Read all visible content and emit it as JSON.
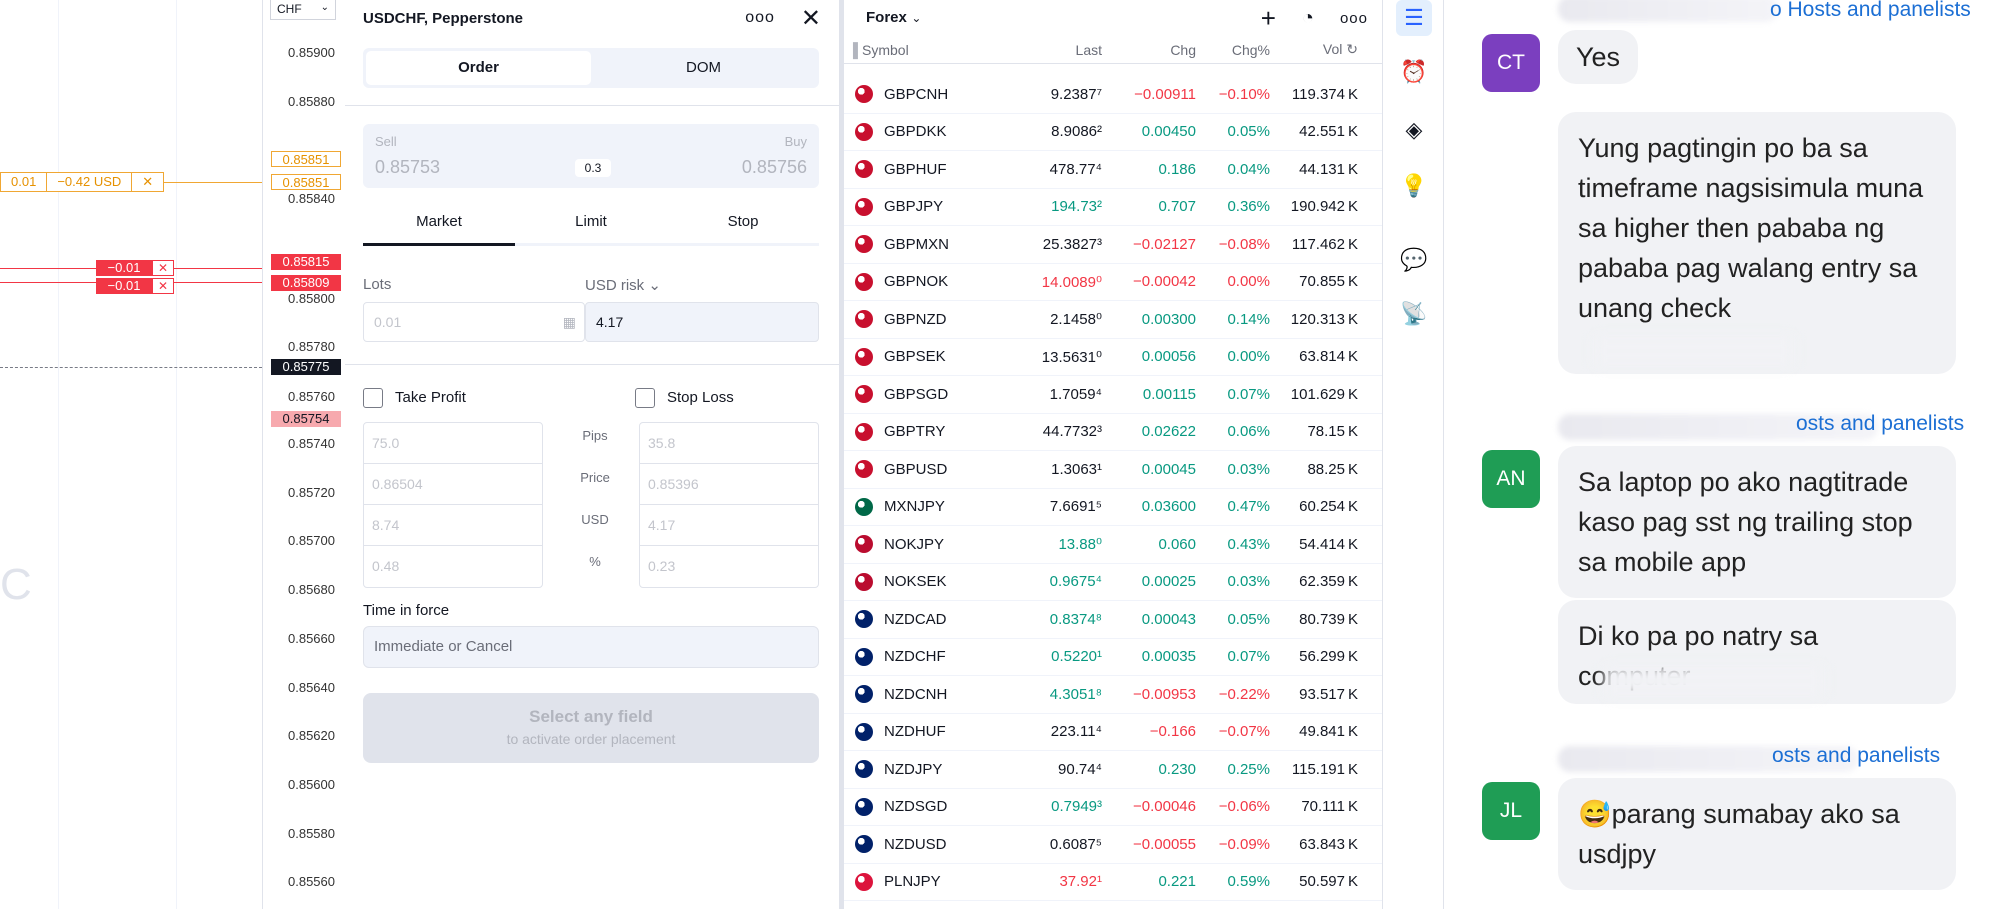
{
  "chart": {
    "currency": "CHF",
    "axis_labels": [
      "0.85900",
      "0.85880",
      "0.85840",
      "0.85800",
      "0.85780",
      "0.85760",
      "0.85740",
      "0.85720",
      "0.85700",
      "0.85680",
      "0.85660",
      "0.85640",
      "0.85620",
      "0.85600",
      "0.85580",
      "0.85560"
    ],
    "tags": {
      "tp1": "0.85851",
      "tp2": "0.85851",
      "red1": "0.85815",
      "red2": "0.85809",
      "current": "0.85775",
      "bid": "0.85754"
    },
    "position_orange": {
      "qty": "0.01",
      "pnl": "−0.42 USD",
      "close": "✕"
    },
    "position_red": {
      "qty": "−0.01",
      "close": "✕"
    },
    "partial_letter": "C"
  },
  "order_panel": {
    "title": "USDCHF, Pepperstone",
    "tabs": [
      "Order",
      "DOM"
    ],
    "sell_label": "Sell",
    "sell_price": "0.85753",
    "buy_label": "Buy",
    "buy_price": "0.85756",
    "spread": "0.3",
    "order_types": [
      "Market",
      "Limit",
      "Stop"
    ],
    "lots_label": "Lots",
    "lots_placeholder": "0.01",
    "risk_label": "USD risk",
    "risk_value": "4.17",
    "take_profit_label": "Take Profit",
    "stop_loss_label": "Stop Loss",
    "row_labels": [
      "Pips",
      "Price",
      "USD",
      "%"
    ],
    "tp_values": [
      "75.0",
      "0.86504",
      "8.74",
      "0.48"
    ],
    "sl_values": [
      "35.8",
      "0.85396",
      "4.17",
      "0.23"
    ],
    "tif_label": "Time in force",
    "tif_value": "Immediate or Cancel",
    "place_button": "Select any field",
    "place_hint": "to activate order placement"
  },
  "watchlist": {
    "title": "Forex",
    "columns": {
      "symbol": "Symbol",
      "last": "Last",
      "chg": "Chg",
      "chg_pct": "Chg%",
      "vol": "Vol"
    },
    "rows": [
      {
        "symbol": "GBPCNH",
        "last": "9.2387⁷",
        "chg": "−0.00911",
        "pct": "−0.10%",
        "vol": "119.374 K",
        "dir": "neg",
        "lastc": "neu"
      },
      {
        "symbol": "GBPDKK",
        "last": "8.9086²",
        "chg": "0.00450",
        "pct": "0.05%",
        "vol": "42.551 K",
        "dir": "pos",
        "lastc": "neu"
      },
      {
        "symbol": "GBPHUF",
        "last": "478.77⁴",
        "chg": "0.186",
        "pct": "0.04%",
        "vol": "44.131 K",
        "dir": "pos",
        "lastc": "neu"
      },
      {
        "symbol": "GBPJPY",
        "last": "194.73²",
        "chg": "0.707",
        "pct": "0.36%",
        "vol": "190.942 K",
        "dir": "pos",
        "lastc": "pos"
      },
      {
        "symbol": "GBPMXN",
        "last": "25.3827³",
        "chg": "−0.02127",
        "pct": "−0.08%",
        "vol": "117.462 K",
        "dir": "neg",
        "lastc": "neu"
      },
      {
        "symbol": "GBPNOK",
        "last": "14.0089⁰",
        "chg": "−0.00042",
        "pct": "0.00%",
        "vol": "70.855 K",
        "dir": "neg",
        "lastc": "neg"
      },
      {
        "symbol": "GBPNZD",
        "last": "2.1458⁰",
        "chg": "0.00300",
        "pct": "0.14%",
        "vol": "120.313 K",
        "dir": "pos",
        "lastc": "neu"
      },
      {
        "symbol": "GBPSEK",
        "last": "13.5631⁰",
        "chg": "0.00056",
        "pct": "0.00%",
        "vol": "63.814 K",
        "dir": "pos",
        "lastc": "neu"
      },
      {
        "symbol": "GBPSGD",
        "last": "1.7059⁴",
        "chg": "0.00115",
        "pct": "0.07%",
        "vol": "101.629 K",
        "dir": "pos",
        "lastc": "neu"
      },
      {
        "symbol": "GBPTRY",
        "last": "44.7732³",
        "chg": "0.02622",
        "pct": "0.06%",
        "vol": "78.15 K",
        "dir": "pos",
        "lastc": "neu"
      },
      {
        "symbol": "GBPUSD",
        "last": "1.3063¹",
        "chg": "0.00045",
        "pct": "0.03%",
        "vol": "88.25 K",
        "dir": "pos",
        "lastc": "neu"
      },
      {
        "symbol": "MXNJPY",
        "last": "7.6691⁵",
        "chg": "0.03600",
        "pct": "0.47%",
        "vol": "60.254 K",
        "dir": "pos",
        "lastc": "neu"
      },
      {
        "symbol": "NOKJPY",
        "last": "13.88⁰",
        "chg": "0.060",
        "pct": "0.43%",
        "vol": "54.414 K",
        "dir": "pos",
        "lastc": "pos"
      },
      {
        "symbol": "NOKSEK",
        "last": "0.9675⁴",
        "chg": "0.00025",
        "pct": "0.03%",
        "vol": "62.359 K",
        "dir": "pos",
        "lastc": "pos"
      },
      {
        "symbol": "NZDCAD",
        "last": "0.8374⁸",
        "chg": "0.00043",
        "pct": "0.05%",
        "vol": "80.739 K",
        "dir": "pos",
        "lastc": "pos"
      },
      {
        "symbol": "NZDCHF",
        "last": "0.5220¹",
        "chg": "0.00035",
        "pct": "0.07%",
        "vol": "56.299 K",
        "dir": "pos",
        "lastc": "pos"
      },
      {
        "symbol": "NZDCNH",
        "last": "4.3051⁸",
        "chg": "−0.00953",
        "pct": "−0.22%",
        "vol": "93.517 K",
        "dir": "neg",
        "lastc": "pos"
      },
      {
        "symbol": "NZDHUF",
        "last": "223.11⁴",
        "chg": "−0.166",
        "pct": "−0.07%",
        "vol": "49.841 K",
        "dir": "neg",
        "lastc": "neu"
      },
      {
        "symbol": "NZDJPY",
        "last": "90.74⁴",
        "chg": "0.230",
        "pct": "0.25%",
        "vol": "115.191 K",
        "dir": "pos",
        "lastc": "neu"
      },
      {
        "symbol": "NZDSGD",
        "last": "0.7949³",
        "chg": "−0.00046",
        "pct": "−0.06%",
        "vol": "70.111 K",
        "dir": "neg",
        "lastc": "pos"
      },
      {
        "symbol": "NZDUSD",
        "last": "0.6087⁵",
        "chg": "−0.00055",
        "pct": "−0.09%",
        "vol": "63.843 K",
        "dir": "neg",
        "lastc": "neu"
      },
      {
        "symbol": "PLNJPY",
        "last": "37.92¹",
        "chg": "0.221",
        "pct": "0.59%",
        "vol": "50.597 K",
        "dir": "pos",
        "lastc": "neg"
      }
    ]
  },
  "chat": {
    "role_suffix_1": "o Hosts and panelists",
    "role_suffix_2": "osts and panelists",
    "role_suffix_3": "osts and panelists",
    "messages": [
      {
        "initials": "CT",
        "color": "#7b3fbf",
        "texts": [
          "Yes",
          "Yung pagtingin po ba sa timeframe nagsisimula muna sa higher then pababa ng pababa pag walang entry sa unang check"
        ]
      },
      {
        "initials": "AN",
        "color": "#1f9d55",
        "texts": [
          "Sa laptop po ako nagtitrade kaso pag sst ng trailing stop sa mobile app",
          "Di ko pa po natry sa computer"
        ]
      },
      {
        "initials": "JL",
        "color": "#1f9d55",
        "texts": [
          "😅parang sumabay ako sa usdjpy"
        ]
      }
    ]
  }
}
